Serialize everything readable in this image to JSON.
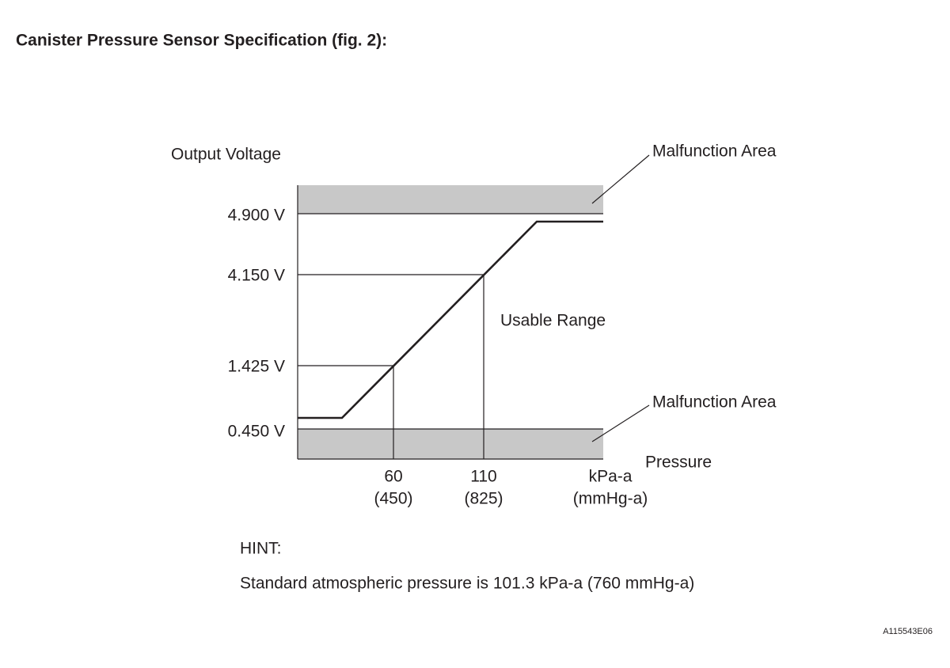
{
  "title": "Canister Pressure Sensor Specification (fig. 2):",
  "graph": {
    "y_axis_label": "Output Voltage",
    "y_labels": [
      "4.900 V",
      "4.150 V",
      "1.425 V",
      "0.450 V"
    ],
    "x_axis_label": "Pressure",
    "x_labels": [
      {
        "kpa": "60",
        "mmhg": "(450)"
      },
      {
        "kpa": "110",
        "mmhg": "(825)"
      },
      {
        "kpa": "kPa-a",
        "mmhg": "(mmHg-a)"
      }
    ],
    "annotations": [
      "Malfunction Area",
      "Usable Range",
      "Malfunction Area"
    ]
  },
  "hint": {
    "heading": "HINT:",
    "text": "Standard atmospheric pressure is 101.3 kPa-a (760 mmHg-a)"
  },
  "figure_id": "A115543E06"
}
